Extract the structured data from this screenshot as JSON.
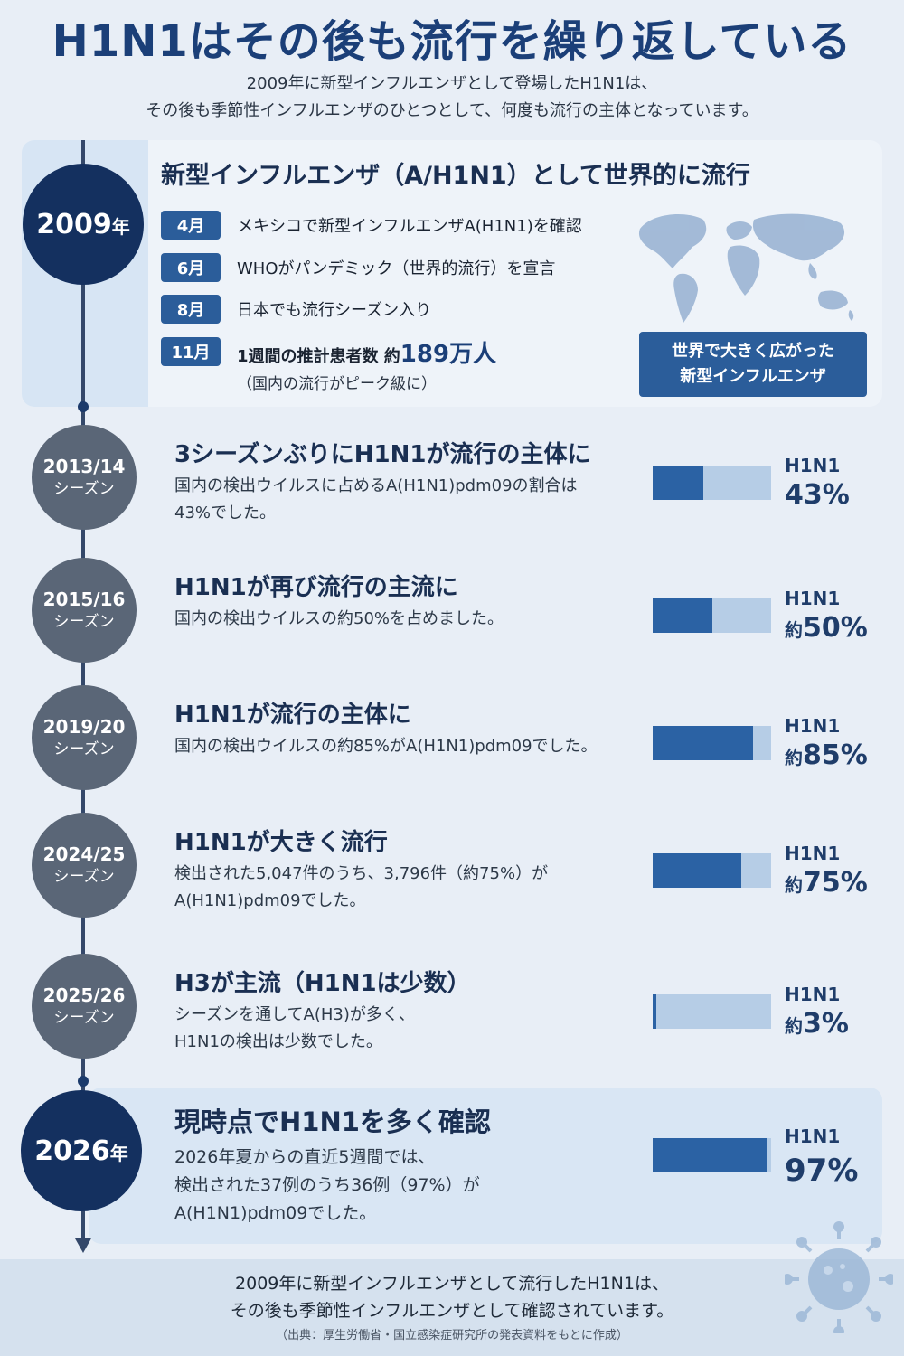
{
  "header": {
    "title": "H1N1はその後も流行を繰り返している",
    "subtitle_line1": "2009年に新型インフルエンザとして登場したH1N1は、",
    "subtitle_line2": "その後も季節性インフルエンザのひとつとして、何度も流行の主体となっています。"
  },
  "y2009": {
    "year": "2009",
    "year_unit": "年",
    "heading": "新型インフルエンザ（A/H1N1）として世界的に流行",
    "events": [
      {
        "month": "4月",
        "text": "メキシコで新型インフルエンザA(H1N1)を確認"
      },
      {
        "month": "6月",
        "text": "WHOがパンデミック（世界的流行）を宣言"
      },
      {
        "month": "8月",
        "text": "日本でも流行シーズン入り"
      },
      {
        "month": "11月",
        "text": "1週間の推計患者数 約",
        "highlight": "189万人"
      }
    ],
    "note": "（国内の流行がピーク級に）",
    "map_label_line1": "世界で大きく広がった",
    "map_label_line2": "新型インフルエンザ",
    "map_icon": "world-map-icon"
  },
  "seasons": [
    {
      "year": "2013/14",
      "label": "シーズン",
      "title": "3シーズンぶりにH1N1が流行の主体に",
      "desc_line1": "国内の検出ウイルスに占めるA(H1N1)pdm09の割合は",
      "desc_line2": "43%でした。",
      "bar_label": "H1N1",
      "pct_prefix": "",
      "pct_text": "43%",
      "value": 0.43
    },
    {
      "year": "2015/16",
      "label": "シーズン",
      "title": "H1N1が再び流行の主流に",
      "desc_line1": "国内の検出ウイルスの約50%を占めました。",
      "desc_line2": "",
      "bar_label": "H1N1",
      "pct_prefix": "約",
      "pct_text": "50%",
      "value": 0.5
    },
    {
      "year": "2019/20",
      "label": "シーズン",
      "title": "H1N1が流行の主体に",
      "desc_line1": "国内の検出ウイルスの約85%がA(H1N1)pdm09でした。",
      "desc_line2": "",
      "bar_label": "H1N1",
      "pct_prefix": "約",
      "pct_text": "85%",
      "value": 0.85
    },
    {
      "year": "2024/25",
      "label": "シーズン",
      "title": "H1N1が大きく流行",
      "desc_line1": "検出された5,047件のうち、3,796件（約75%）が",
      "desc_line2": "A(H1N1)pdm09でした。",
      "bar_label": "H1N1",
      "pct_prefix": "約",
      "pct_text": "75%",
      "value": 0.75
    },
    {
      "year": "2025/26",
      "label": "シーズン",
      "title": "H3が主流（H1N1は少数）",
      "desc_line1": "シーズンを通してA(H3)が多く、",
      "desc_line2": "H1N1の検出は少数でした。",
      "bar_label": "H1N1",
      "pct_prefix": "約",
      "pct_text": "3%",
      "value": 0.03
    }
  ],
  "y2026": {
    "year": "2026",
    "year_unit": "年",
    "title": "現時点でH1N1を多く確認",
    "desc_line1": "2026年夏からの直近5週間では、",
    "desc_line2": "検出された37例のうち36例（97%）が",
    "desc_line3": "A(H1N1)pdm09でした。",
    "bar_label": "H1N1",
    "pct_text": "97%",
    "value": 0.97
  },
  "footer": {
    "line1": "2009年に新型インフルエンザとして流行したH1N1は、",
    "line2": "その後も季節性インフルエンザとして確認されています。",
    "source": "（出典：厚生労働省・国立感染症研究所の発表資料をもとに作成）",
    "virus_icon": "virus-icon"
  },
  "colors": {
    "navy": "#14305f",
    "accent": "#2b5d9a",
    "bar_fill": "#2b62a4",
    "bar_track": "#b6cde6",
    "season_circle": "#5a6677"
  }
}
